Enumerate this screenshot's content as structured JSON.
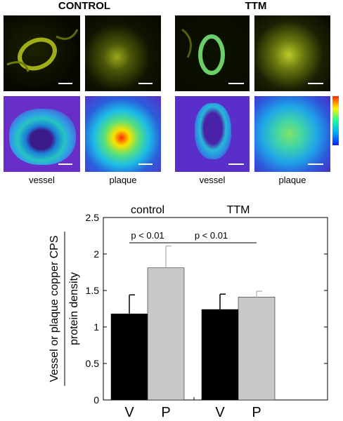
{
  "figure": {
    "top": {
      "groups": [
        {
          "title": "CONTROL",
          "labels": [
            "vessel",
            "plaque"
          ]
        },
        {
          "title": "TTM",
          "labels": [
            "vessel",
            "plaque"
          ]
        }
      ]
    },
    "colorscale": {
      "colors": [
        "#0a1fff",
        "#00a8ff",
        "#1cff9a",
        "#fff200",
        "#ff2a00"
      ]
    }
  },
  "chart_data": {
    "type": "bar",
    "ylabel": "Vessel or plaque copper CPS protein density",
    "ylabel_top": "Vessel or plaque copper CPS",
    "ylabel_bottom": "protein density",
    "ylim": [
      0,
      2.5
    ],
    "yticks": [
      "0",
      "0.5",
      "1",
      "1.5",
      "2",
      "2.5"
    ],
    "groups": [
      {
        "label": "control",
        "bars": [
          {
            "category": "V",
            "value": 1.18,
            "error": 0.26,
            "color": "#000000"
          },
          {
            "category": "P",
            "value": 1.81,
            "error": 0.3,
            "color": "#c8c8c8"
          }
        ]
      },
      {
        "label": "TTM",
        "bars": [
          {
            "category": "V",
            "value": 1.24,
            "error": 0.21,
            "color": "#000000"
          },
          {
            "category": "P",
            "value": 1.41,
            "error": 0.08,
            "color": "#c8c8c8"
          }
        ]
      }
    ],
    "annotations": [
      {
        "text": "p < 0.01",
        "from": "control-V",
        "to": "control-P"
      },
      {
        "text": "p < 0.01",
        "from": "control-P",
        "to": "TTM-P"
      }
    ]
  }
}
